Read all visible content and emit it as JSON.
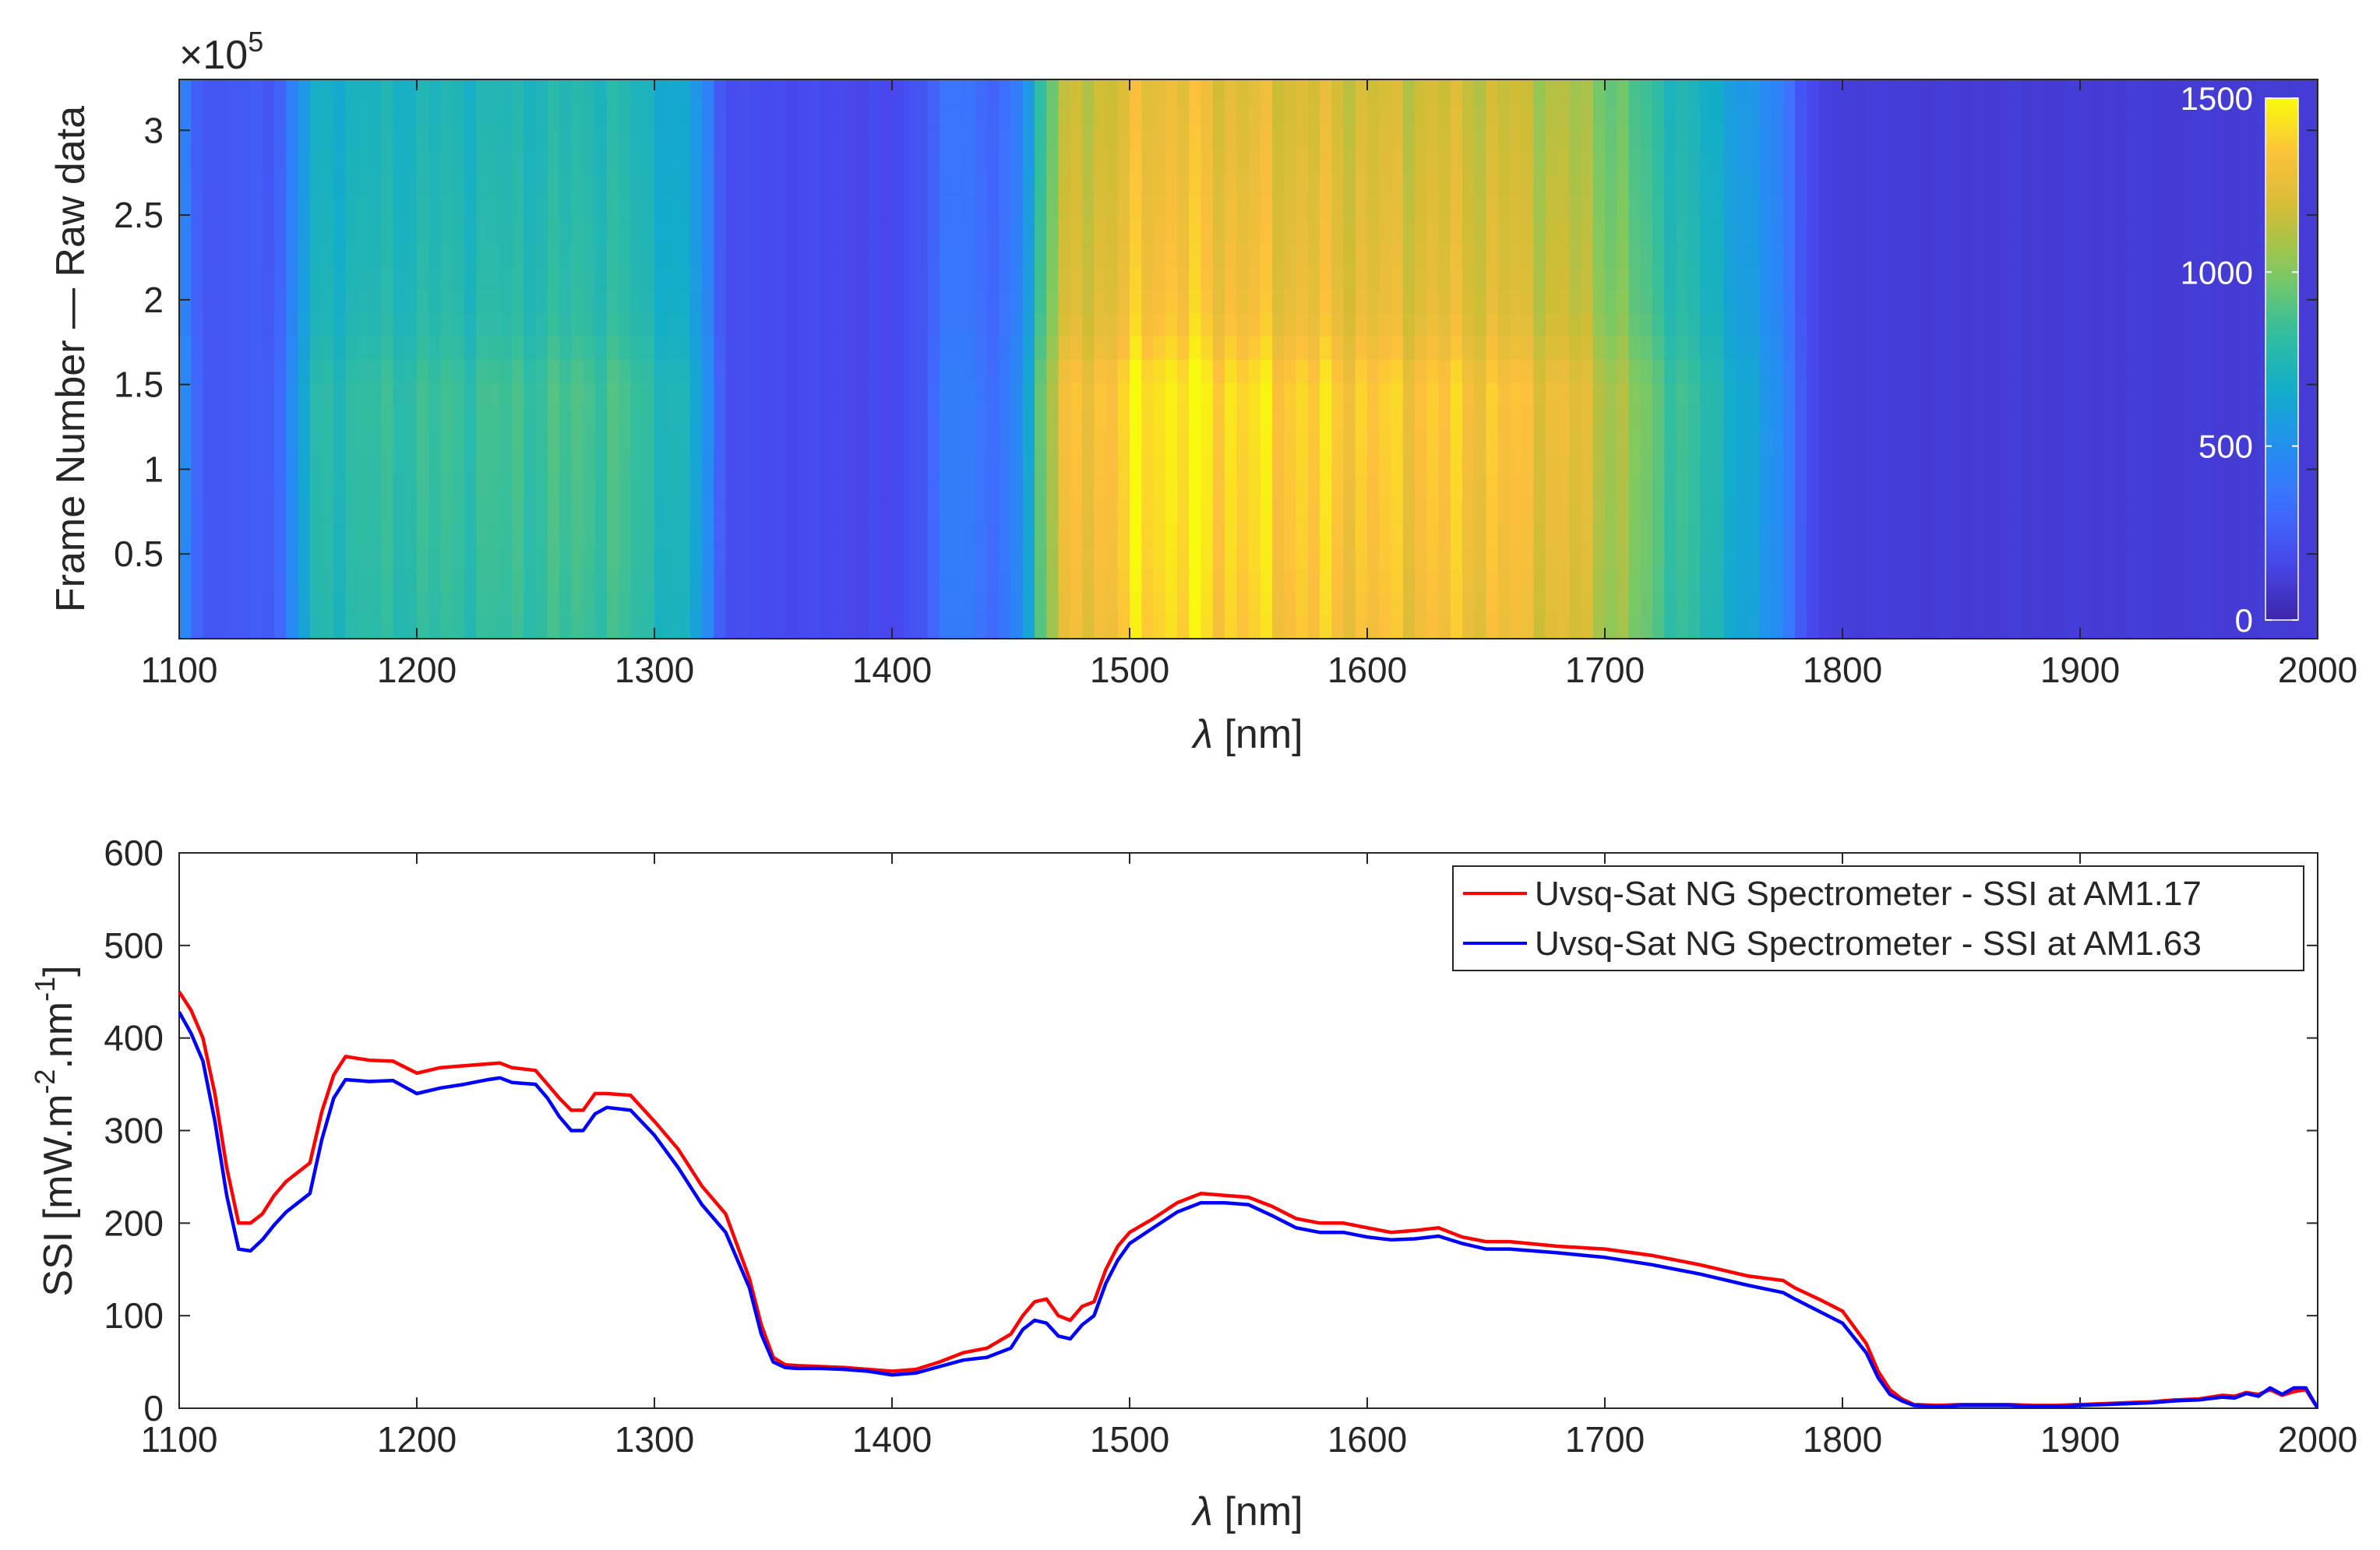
{
  "chart_data": [
    {
      "type": "heatmap",
      "title": "",
      "xlabel_symbol": "λ",
      "xlabel_unit": "[nm]",
      "ylabel": "Frame Number — Raw data",
      "y_exponent_base": "×10",
      "y_exponent_power": "5",
      "xlim": [
        1100,
        2000
      ],
      "ylim": [
        0,
        3.3
      ],
      "x_ticks": [
        "1100",
        "1200",
        "1300",
        "1400",
        "1500",
        "1600",
        "1700",
        "1800",
        "1900",
        "2000"
      ],
      "y_ticks": [
        "0.5",
        "1",
        "1.5",
        "2",
        "2.5",
        "3"
      ],
      "y_tick_values": [
        0.5,
        1,
        1.5,
        2,
        2.5,
        3
      ],
      "colorbar": {
        "range": [
          0,
          1500
        ],
        "ticks": [
          "0",
          "500",
          "1000",
          "1500"
        ],
        "tick_values": [
          0,
          500,
          1000,
          1500
        ],
        "colormap": "parula"
      },
      "wavelength_profile": {
        "wavelengths": [
          1100,
          1105,
          1112,
          1120,
          1140,
          1150,
          1155,
          1165,
          1180,
          1200,
          1220,
          1240,
          1260,
          1275,
          1290,
          1300,
          1310,
          1320,
          1325,
          1330,
          1340,
          1360,
          1380,
          1400,
          1415,
          1425,
          1435,
          1445,
          1455,
          1460,
          1465,
          1475,
          1490,
          1510,
          1530,
          1550,
          1570,
          1590,
          1610,
          1630,
          1650,
          1670,
          1690,
          1700,
          1710,
          1720,
          1735,
          1750,
          1765,
          1775,
          1785,
          1790,
          1800,
          1850,
          1900,
          1950,
          2000
        ],
        "intensity": [
          580,
          300,
          250,
          230,
          260,
          520,
          720,
          760,
          780,
          800,
          810,
          820,
          830,
          850,
          820,
          760,
          700,
          580,
          350,
          200,
          190,
          180,
          170,
          165,
          250,
          420,
          380,
          300,
          500,
          750,
          1050,
          1250,
          1300,
          1420,
          1400,
          1360,
          1340,
          1320,
          1300,
          1300,
          1290,
          1250,
          1180,
          1100,
          1000,
          900,
          800,
          700,
          550,
          450,
          200,
          140,
          120,
          110,
          110,
          110,
          110
        ]
      },
      "frame_modulation": {
        "frames_e5": [
          0,
          0.5,
          1.0,
          1.5,
          1.8,
          2.0,
          2.5,
          3.0,
          3.3
        ],
        "factor": [
          1.0,
          1.02,
          1.03,
          1.04,
          0.97,
          0.95,
          0.93,
          0.91,
          0.9
        ]
      }
    },
    {
      "type": "line",
      "title": "",
      "xlabel_symbol": "λ",
      "xlabel_unit": "[nm]",
      "ylabel_main": "SSI [mW.m",
      "ylabel_sup1": "-2",
      "ylabel_mid": ".nm",
      "ylabel_sup2": "-1",
      "ylabel_end": "]",
      "xlim": [
        1100,
        2000
      ],
      "ylim": [
        0,
        600
      ],
      "x_ticks": [
        "1100",
        "1200",
        "1300",
        "1400",
        "1500",
        "1600",
        "1700",
        "1800",
        "1900",
        "2000"
      ],
      "y_ticks": [
        "0",
        "100",
        "200",
        "300",
        "400",
        "500",
        "600"
      ],
      "y_tick_values": [
        0,
        100,
        200,
        300,
        400,
        500,
        600
      ],
      "legend_position": "top-right",
      "series": [
        {
          "name": "Uvsq-Sat NG Spectrometer - SSI at AM1.17",
          "color": "#ff0000",
          "x": [
            1100,
            1105,
            1110,
            1115,
            1120,
            1125,
            1130,
            1135,
            1140,
            1145,
            1150,
            1155,
            1160,
            1165,
            1170,
            1175,
            1180,
            1190,
            1200,
            1210,
            1220,
            1230,
            1235,
            1240,
            1250,
            1255,
            1260,
            1265,
            1270,
            1275,
            1280,
            1290,
            1300,
            1310,
            1320,
            1330,
            1340,
            1345,
            1350,
            1355,
            1360,
            1370,
            1380,
            1390,
            1400,
            1410,
            1420,
            1430,
            1440,
            1450,
            1455,
            1460,
            1465,
            1470,
            1475,
            1480,
            1485,
            1490,
            1495,
            1500,
            1510,
            1520,
            1530,
            1540,
            1550,
            1560,
            1570,
            1580,
            1590,
            1600,
            1610,
            1620,
            1630,
            1640,
            1650,
            1660,
            1680,
            1700,
            1720,
            1740,
            1760,
            1775,
            1780,
            1790,
            1800,
            1810,
            1815,
            1820,
            1825,
            1830,
            1840,
            1850,
            1860,
            1870,
            1880,
            1890,
            1900,
            1910,
            1920,
            1930,
            1940,
            1950,
            1960,
            1965,
            1970,
            1975,
            1980,
            1985,
            1990,
            1995,
            2000
          ],
          "y": [
            450,
            430,
            400,
            340,
            260,
            200,
            200,
            210,
            230,
            245,
            255,
            265,
            320,
            360,
            380,
            378,
            376,
            375,
            362,
            368,
            370,
            372,
            373,
            368,
            365,
            350,
            335,
            322,
            322,
            340,
            340,
            338,
            310,
            280,
            240,
            210,
            140,
            90,
            55,
            47,
            46,
            45,
            44,
            42,
            40,
            42,
            50,
            60,
            65,
            80,
            100,
            115,
            118,
            100,
            95,
            110,
            115,
            150,
            175,
            190,
            205,
            222,
            232,
            230,
            228,
            218,
            205,
            200,
            200,
            195,
            190,
            192,
            195,
            185,
            180,
            180,
            175,
            172,
            165,
            155,
            143,
            138,
            130,
            118,
            105,
            70,
            40,
            20,
            10,
            4,
            3,
            4,
            4,
            4,
            3,
            3,
            4,
            5,
            6,
            7,
            9,
            10,
            14,
            13,
            17,
            15,
            20,
            14,
            18,
            20,
            0
          ]
        },
        {
          "name": "Uvsq-Sat NG Spectrometer - SSI at AM1.63",
          "color": "#0000ff",
          "x": [
            1100,
            1105,
            1110,
            1115,
            1120,
            1125,
            1130,
            1135,
            1140,
            1145,
            1150,
            1155,
            1160,
            1165,
            1170,
            1175,
            1180,
            1190,
            1200,
            1210,
            1220,
            1230,
            1235,
            1240,
            1250,
            1255,
            1260,
            1265,
            1270,
            1275,
            1280,
            1290,
            1300,
            1310,
            1320,
            1330,
            1340,
            1345,
            1350,
            1355,
            1360,
            1370,
            1380,
            1390,
            1400,
            1410,
            1420,
            1430,
            1440,
            1450,
            1455,
            1460,
            1465,
            1470,
            1475,
            1480,
            1485,
            1490,
            1495,
            1500,
            1510,
            1520,
            1530,
            1540,
            1550,
            1560,
            1570,
            1580,
            1590,
            1600,
            1610,
            1620,
            1630,
            1640,
            1650,
            1660,
            1680,
            1700,
            1720,
            1740,
            1760,
            1775,
            1780,
            1790,
            1800,
            1810,
            1815,
            1820,
            1825,
            1830,
            1840,
            1850,
            1860,
            1870,
            1880,
            1890,
            1900,
            1910,
            1920,
            1930,
            1940,
            1950,
            1960,
            1965,
            1970,
            1975,
            1980,
            1985,
            1990,
            1995,
            2000
          ],
          "y": [
            428,
            405,
            375,
            310,
            230,
            172,
            170,
            182,
            198,
            212,
            222,
            232,
            290,
            335,
            355,
            354,
            353,
            354,
            340,
            346,
            350,
            355,
            357,
            352,
            350,
            335,
            315,
            300,
            300,
            318,
            325,
            322,
            295,
            260,
            220,
            190,
            130,
            80,
            50,
            44,
            43,
            43,
            42,
            40,
            36,
            38,
            45,
            52,
            55,
            65,
            85,
            95,
            92,
            78,
            75,
            90,
            100,
            135,
            160,
            178,
            195,
            212,
            222,
            222,
            220,
            208,
            195,
            190,
            190,
            185,
            182,
            183,
            186,
            178,
            172,
            172,
            168,
            163,
            155,
            145,
            133,
            125,
            118,
            105,
            92,
            60,
            33,
            15,
            8,
            3,
            2,
            3,
            3,
            3,
            2,
            2,
            3,
            4,
            5,
            6,
            8,
            9,
            12,
            11,
            16,
            13,
            22,
            15,
            22,
            22,
            0
          ]
        }
      ]
    }
  ]
}
